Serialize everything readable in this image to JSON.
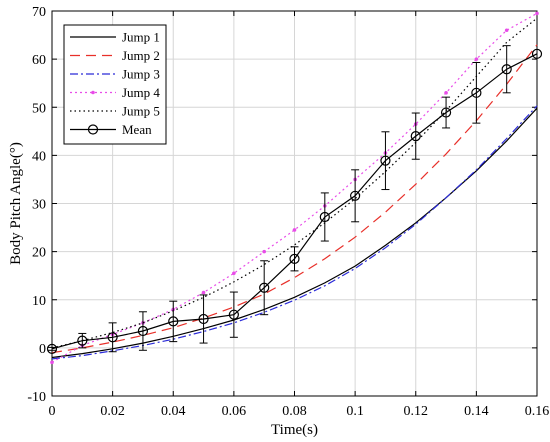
{
  "chart_data": {
    "type": "line",
    "xlabel": "Time(s)",
    "ylabel": "Body Pitch Angle(°)",
    "xlim": [
      0,
      0.16
    ],
    "ylim": [
      -10,
      70
    ],
    "xticks": [
      0,
      0.02,
      0.04,
      0.06,
      0.08,
      0.1,
      0.12,
      0.14,
      0.16
    ],
    "xtick_labels": [
      "0",
      "0.02",
      "0.04",
      "0.06",
      "0.08",
      "0.1",
      "0.12",
      "0.14",
      "0.16"
    ],
    "yticks": [
      -10,
      0,
      10,
      20,
      30,
      40,
      50,
      60,
      70
    ],
    "ytick_labels": [
      "-10",
      "0",
      "10",
      "20",
      "30",
      "40",
      "50",
      "60",
      "70"
    ],
    "grid": true,
    "legend_position": "top-left",
    "x": [
      0,
      0.01,
      0.02,
      0.03,
      0.04,
      0.05,
      0.06,
      0.07,
      0.08,
      0.09,
      0.1,
      0.11,
      0.12,
      0.13,
      0.14,
      0.15,
      0.16
    ],
    "series": [
      {
        "name": "Jump 1",
        "color": "#000000",
        "dash": "",
        "marker": "none",
        "values": [
          -2,
          -1.2,
          -0.2,
          1,
          2.4,
          4,
          5.8,
          8,
          10.5,
          13.5,
          17,
          21.3,
          26,
          31.2,
          36.8,
          43,
          49.8
        ]
      },
      {
        "name": "Jump 2",
        "color": "#e8302a",
        "dash": "10,6",
        "marker": "none",
        "values": [
          -1,
          0,
          1.2,
          2.6,
          4.2,
          6.2,
          8.5,
          11.2,
          14.6,
          18.5,
          23,
          28.2,
          34,
          40.3,
          47.2,
          54.8,
          63
        ]
      },
      {
        "name": "Jump 3",
        "color": "#2b2bd8",
        "dash": "8,3,2,3",
        "marker": "none",
        "values": [
          -2.3,
          -1.6,
          -0.6,
          0.5,
          1.8,
          3.4,
          5.2,
          7.4,
          9.9,
          12.9,
          16.5,
          20.8,
          25.7,
          31.2,
          37,
          43.5,
          50.3
        ]
      },
      {
        "name": "Jump 4",
        "color": "#e84ce8",
        "dash": "2,3",
        "marker": "dot",
        "values": [
          -3,
          0.5,
          2.8,
          5.2,
          8,
          11.5,
          15.5,
          20,
          24.5,
          29.5,
          35,
          40.5,
          46.5,
          53,
          60,
          66,
          69.5
        ]
      },
      {
        "name": "Jump 5",
        "color": "#000000",
        "dash": "1.5,3",
        "marker": "none",
        "values": [
          0,
          1.5,
          3.2,
          5.2,
          7.7,
          10.5,
          13.7,
          17.3,
          21.4,
          26,
          31,
          36.6,
          42.7,
          49.3,
          56.4,
          63.5,
          68.5
        ]
      },
      {
        "name": "Mean",
        "color": "#000000",
        "dash": "",
        "marker": "circle",
        "values": [
          -0.2,
          1.5,
          2.2,
          3.5,
          5.5,
          6,
          6.9,
          12.5,
          18.5,
          27.2,
          31.6,
          38.9,
          44,
          48.9,
          53,
          57.9,
          61.1
        ],
        "error": [
          0.3,
          1.5,
          3,
          4,
          4.2,
          5,
          4.7,
          5.6,
          2.5,
          5,
          5.4,
          6,
          4.8,
          3.2,
          6.3,
          4.9,
          0
        ]
      }
    ]
  }
}
